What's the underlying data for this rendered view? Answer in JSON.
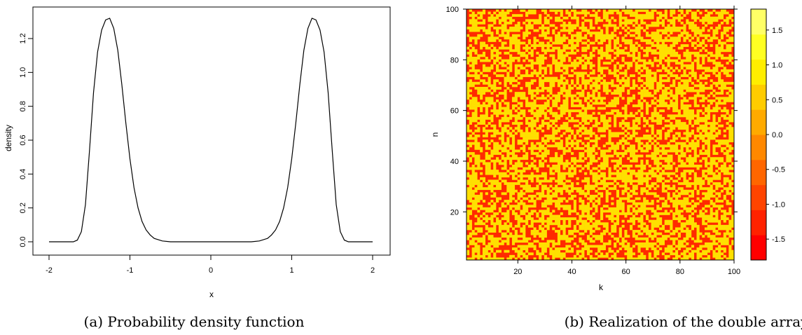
{
  "captions": {
    "left": "(a) Probability density function",
    "right": "(b) Realization of the double array"
  },
  "chart_data": [
    {
      "type": "line",
      "title": "",
      "xlabel": "x",
      "ylabel": "density",
      "xlim": [
        -2,
        2
      ],
      "ylim": [
        0,
        1.32
      ],
      "x_ticks": [
        "-2",
        "-1",
        "0",
        "1",
        "2"
      ],
      "y_ticks": [
        "0.0",
        "0.2",
        "0.4",
        "0.6",
        "0.8",
        "1.0",
        "1.2"
      ],
      "grid": false,
      "series": [
        {
          "x": [
            -2.0,
            -1.9,
            -1.8,
            -1.7,
            -1.65,
            -1.6,
            -1.55,
            -1.5,
            -1.45,
            -1.4,
            -1.35,
            -1.3,
            -1.25,
            -1.2,
            -1.15,
            -1.1,
            -1.05,
            -1.0,
            -0.95,
            -0.9,
            -0.85,
            -0.8,
            -0.75,
            -0.7,
            -0.6,
            -0.5,
            -0.4,
            -0.2,
            0.0,
            0.2,
            0.4,
            0.5,
            0.6,
            0.7,
            0.75,
            0.8,
            0.85,
            0.9,
            0.95,
            1.0,
            1.05,
            1.1,
            1.15,
            1.2,
            1.25,
            1.3,
            1.35,
            1.4,
            1.45,
            1.5,
            1.55,
            1.6,
            1.65,
            1.7,
            1.8,
            1.9,
            2.0
          ],
          "values": [
            0.0,
            0.0,
            0.0,
            0.0,
            0.01,
            0.06,
            0.22,
            0.54,
            0.88,
            1.12,
            1.25,
            1.31,
            1.32,
            1.26,
            1.13,
            0.93,
            0.7,
            0.49,
            0.32,
            0.2,
            0.12,
            0.07,
            0.04,
            0.02,
            0.005,
            0.0,
            0.0,
            0.0,
            0.0,
            0.0,
            0.0,
            0.0,
            0.005,
            0.02,
            0.04,
            0.07,
            0.12,
            0.2,
            0.32,
            0.49,
            0.7,
            0.93,
            1.13,
            1.26,
            1.32,
            1.31,
            1.25,
            1.12,
            0.88,
            0.54,
            0.22,
            0.06,
            0.01,
            0.0,
            0.0,
            0.0,
            0.0
          ]
        }
      ],
      "line_color": "#000000"
    },
    {
      "type": "heatmap",
      "title": "",
      "xlabel": "k",
      "ylabel": "n",
      "xlim": [
        1,
        100
      ],
      "ylim": [
        1,
        100
      ],
      "x_ticks": [
        "20",
        "40",
        "60",
        "80",
        "100"
      ],
      "y_ticks": [
        "20",
        "40",
        "60",
        "80",
        "100"
      ],
      "grid_size": [
        100,
        100
      ],
      "value_description": "random binary-like realization; values cluster near 1.8 (yellow) and -1.8 (red)",
      "high_value": 1.8,
      "low_value": -1.8,
      "colorbar": {
        "ticks": [
          "1.5",
          "1.0",
          "0.5",
          "0.0",
          "-0.5",
          "-1.0",
          "-1.5"
        ],
        "range": [
          -1.8,
          1.8
        ],
        "colors": [
          "#ff0000",
          "#ff2200",
          "#ff4400",
          "#ff6600",
          "#ff8800",
          "#ffaa00",
          "#ffcc00",
          "#ffee00",
          "#ffff22",
          "#ffff66"
        ]
      },
      "colors": {
        "high": "#ffe000",
        "low": "#ff2a00"
      }
    }
  ]
}
